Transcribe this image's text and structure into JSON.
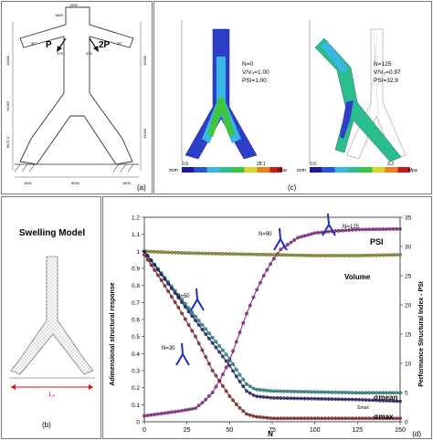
{
  "panel_a": {
    "label": "(a)",
    "load_left": "P",
    "load_right": "2P",
    "dims": {
      "top_width": "1500",
      "top_height": "1800",
      "arm_left_height": "14000",
      "arm_right_height": "16000",
      "angle_left": "30°",
      "angle_right": "30°",
      "offset_left": "375",
      "offset_right": "375",
      "mid_height": "14260",
      "lower_height": "8571.4",
      "total_height": "15000",
      "base_left": "1500",
      "base_mid": "8000",
      "base_right": "1500"
    }
  },
  "panel_c": {
    "label": "(c)",
    "left": {
      "n": "N=0",
      "ratio": "V/V₀=1.00",
      "psi": "PSI=1.00",
      "scale_min": "0.0",
      "scale_max": "28.1",
      "unit": "Mpa",
      "sigma_label": "σvm"
    },
    "right": {
      "n": "N=125",
      "ratio": "V/V₀=0.97",
      "psi": "PSI=32.9",
      "scale_min": "0.0",
      "scale_max": "3.2",
      "unit": "Mpa",
      "sigma_label": "σvm"
    },
    "scale_colors": [
      "#1a1aa0",
      "#2855d8",
      "#39b6e6",
      "#2bbd8c",
      "#3ec43e",
      "#d8d82a",
      "#e88420",
      "#c81c1c"
    ]
  },
  "panel_b": {
    "title": "Swelling Model",
    "dimension": "L₀",
    "label": "(b)"
  },
  "panel_d": {
    "label": "(d)",
    "annotations": {
      "psi": "PSI",
      "volume": "Volume",
      "sigma_mean": "σmean",
      "sigma_max": "σmax",
      "smax_small": "Smax"
    },
    "insets": [
      "N=30",
      "N=50",
      "N=90",
      "N=125"
    ]
  },
  "chart_data": {
    "type": "line",
    "xlabel": "N",
    "ylabel": "Adimensional structural response",
    "y2label": "Performance Structural Index - PSI",
    "xlim": [
      0,
      150
    ],
    "ylim": [
      0,
      1.2
    ],
    "y2lim": [
      0,
      35
    ],
    "xticks": [
      "0",
      "25",
      "50",
      "75",
      "100",
      "125",
      "150"
    ],
    "yticks": [
      "0",
      "0.1",
      "0.2",
      "0.3",
      "0.4",
      "0.5",
      "0.6",
      "0.7",
      "0.8",
      "0.9",
      "1",
      "1.1",
      "1.2"
    ],
    "y2ticks": [
      "0",
      "5",
      "10",
      "15",
      "20",
      "25",
      "30",
      "35"
    ],
    "grid": false,
    "series": [
      {
        "name": "PSI",
        "axis": "right",
        "color": "#8a1c8a",
        "x": [
          0,
          10,
          20,
          30,
          35,
          40,
          45,
          50,
          55,
          60,
          65,
          70,
          75,
          80,
          90,
          100,
          110,
          125,
          150
        ],
        "values": [
          1.0,
          1.4,
          1.8,
          2.3,
          3.5,
          5.0,
          7.5,
          10.5,
          14.5,
          18.5,
          22.0,
          25.0,
          27.5,
          29.5,
          31.5,
          32.3,
          32.6,
          32.9,
          33.0
        ]
      },
      {
        "name": "Volume",
        "axis": "left",
        "color": "#8a8a1a",
        "x": [
          0,
          25,
          50,
          75,
          100,
          125,
          150
        ],
        "values": [
          1.0,
          0.99,
          0.985,
          0.98,
          0.975,
          0.975,
          0.98
        ]
      },
      {
        "name": "σmean",
        "axis": "left",
        "color": "#1a8a8a",
        "x": [
          0,
          25,
          50,
          55,
          60,
          65,
          75,
          100,
          125,
          150
        ],
        "values": [
          1.0,
          0.68,
          0.37,
          0.29,
          0.22,
          0.19,
          0.18,
          0.175,
          0.17,
          0.17
        ]
      },
      {
        "name": "σmax",
        "axis": "left",
        "color": "#1a1a6e",
        "x": [
          0,
          25,
          50,
          55,
          60,
          65,
          75,
          100,
          125,
          150
        ],
        "values": [
          1.0,
          0.66,
          0.33,
          0.25,
          0.18,
          0.15,
          0.14,
          0.135,
          0.13,
          0.12
        ]
      },
      {
        "name": "Smax",
        "axis": "left",
        "color": "#8a1c1c",
        "x": [
          0,
          10,
          20,
          30,
          40,
          50,
          55,
          60,
          65,
          70,
          75,
          100,
          150
        ],
        "values": [
          0.98,
          0.83,
          0.67,
          0.5,
          0.3,
          0.15,
          0.09,
          0.045,
          0.03,
          0.025,
          0.02,
          0.02,
          0.02
        ]
      }
    ]
  }
}
